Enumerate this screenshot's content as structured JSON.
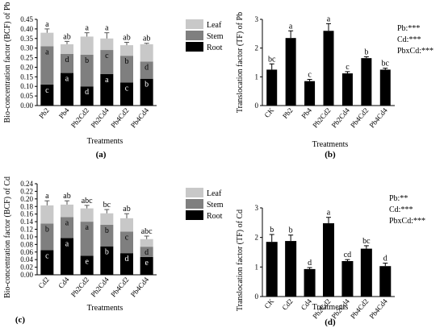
{
  "chart_data": [
    {
      "type": "bar",
      "stacked": true,
      "panel_label": "(a)",
      "xlabel": "Treatments",
      "ylabel": "Bio-concentration factor (BCF) of Pb",
      "ylim": [
        0,
        0.45
      ],
      "yticks": [
        "0.00",
        "0.05",
        "0.10",
        "0.15",
        "0.20",
        "0.25",
        "0.30",
        "0.35",
        "0.40",
        "0.45"
      ],
      "categories": [
        "Pb2",
        "Pb4",
        "Pb2Cd2",
        "Pb2Cd4",
        "Pb4Cd2",
        "Pb4Cd4"
      ],
      "series": [
        {
          "name": "Root",
          "color": "#000000",
          "values": [
            0.11,
            0.17,
            0.1,
            0.165,
            0.12,
            0.14
          ],
          "letters": [
            "c",
            "a",
            "d",
            "a",
            "c",
            "b"
          ]
        },
        {
          "name": "Stem",
          "color": "#7f7f7f",
          "values": [
            0.2,
            0.1,
            0.165,
            0.125,
            0.14,
            0.09
          ],
          "letters": [
            "a",
            "d",
            "b",
            "c",
            "b",
            "d"
          ]
        },
        {
          "name": "Leaf",
          "color": "#c8c8c8",
          "values": [
            0.07,
            0.05,
            0.095,
            0.06,
            0.055,
            0.09
          ],
          "errors": [
            0.02,
            0.015,
            0.02,
            0.03,
            0.015,
            0.005
          ],
          "letters": [
            "a",
            "ab",
            "a",
            "a",
            "ab",
            "ab"
          ]
        }
      ],
      "legend": [
        "Leaf",
        "Stem",
        "Root"
      ]
    },
    {
      "type": "bar",
      "panel_label": "(b)",
      "xlabel": "Treatments",
      "ylabel": "Translocation factor (TF) of Pb",
      "ylim": [
        0,
        3
      ],
      "yticks": [
        "0",
        "1",
        "2",
        "3"
      ],
      "categories": [
        "CK",
        "Pb2",
        "Pb4",
        "Pb2Cd2",
        "Pb2Cd4",
        "Pb4Cd2",
        "Pb4Cd4"
      ],
      "values": [
        1.25,
        2.35,
        0.85,
        2.6,
        1.12,
        1.65,
        1.25
      ],
      "errors": [
        0.2,
        0.25,
        0.06,
        0.25,
        0.06,
        0.05,
        0.05
      ],
      "letters": [
        "bc",
        "a",
        "c",
        "a",
        "c",
        "b",
        "bc"
      ],
      "significance": [
        "Pb:***",
        "Cd:***",
        "PbxCd:***"
      ]
    },
    {
      "type": "bar",
      "stacked": true,
      "panel_label": "(c)",
      "xlabel": "Treatments",
      "ylabel": "Bio-concentration factor (BCF) of Cd",
      "ylim": [
        0,
        0.24
      ],
      "yticks": [
        "0.00",
        "0.02",
        "0.04",
        "0.06",
        "0.08",
        "0.10",
        "0.12",
        "0.14",
        "0.16",
        "0.18",
        "0.20",
        "0.22",
        "0.24"
      ],
      "categories": [
        "Cd2",
        "Cd4",
        "Pb2Cd2",
        "Pb2Cd4",
        "Pb4Cd2",
        "Pb4Cd4"
      ],
      "series": [
        {
          "name": "Root",
          "color": "#000000",
          "values": [
            0.065,
            0.097,
            0.05,
            0.075,
            0.057,
            0.047
          ],
          "letters": [
            "c",
            "a",
            "e",
            "b",
            "d",
            "e"
          ]
        },
        {
          "name": "Stem",
          "color": "#7f7f7f",
          "values": [
            0.07,
            0.055,
            0.09,
            0.057,
            0.057,
            0.027
          ],
          "letters": [
            "b",
            "a",
            "a",
            "b",
            "c",
            "d"
          ]
        },
        {
          "name": "Leaf",
          "color": "#c8c8c8",
          "values": [
            0.048,
            0.033,
            0.035,
            0.03,
            0.035,
            0.02
          ],
          "errors": [
            0.012,
            0.01,
            0.008,
            0.01,
            0.012,
            0.008
          ],
          "letters": [
            "a",
            "ab",
            "abc",
            "bc",
            "ab",
            "abc"
          ]
        }
      ],
      "legend": [
        "Leaf",
        "Stem",
        "Root"
      ]
    },
    {
      "type": "bar",
      "panel_label": "(d)",
      "xlabel": "Treatments",
      "ylabel": "Translocation factor (TF) of Cd",
      "ylim": [
        0,
        3
      ],
      "yticks": [
        "0",
        "1",
        "2",
        "3"
      ],
      "categories": [
        "CK",
        "Cd2",
        "Cd4",
        "Pb2Cd2",
        "Pb2Cd4",
        "Pb4Cd2",
        "Pb4Cd4"
      ],
      "values": [
        1.85,
        1.88,
        0.93,
        2.48,
        1.2,
        1.62,
        1.03
      ],
      "errors": [
        0.25,
        0.2,
        0.05,
        0.2,
        0.05,
        0.1,
        0.1
      ],
      "letters": [
        "b",
        "b",
        "d",
        "a",
        "cd",
        "bc",
        "d"
      ],
      "significance": [
        "Pb:**",
        "Cd:***",
        "PbxCd:***"
      ]
    }
  ]
}
